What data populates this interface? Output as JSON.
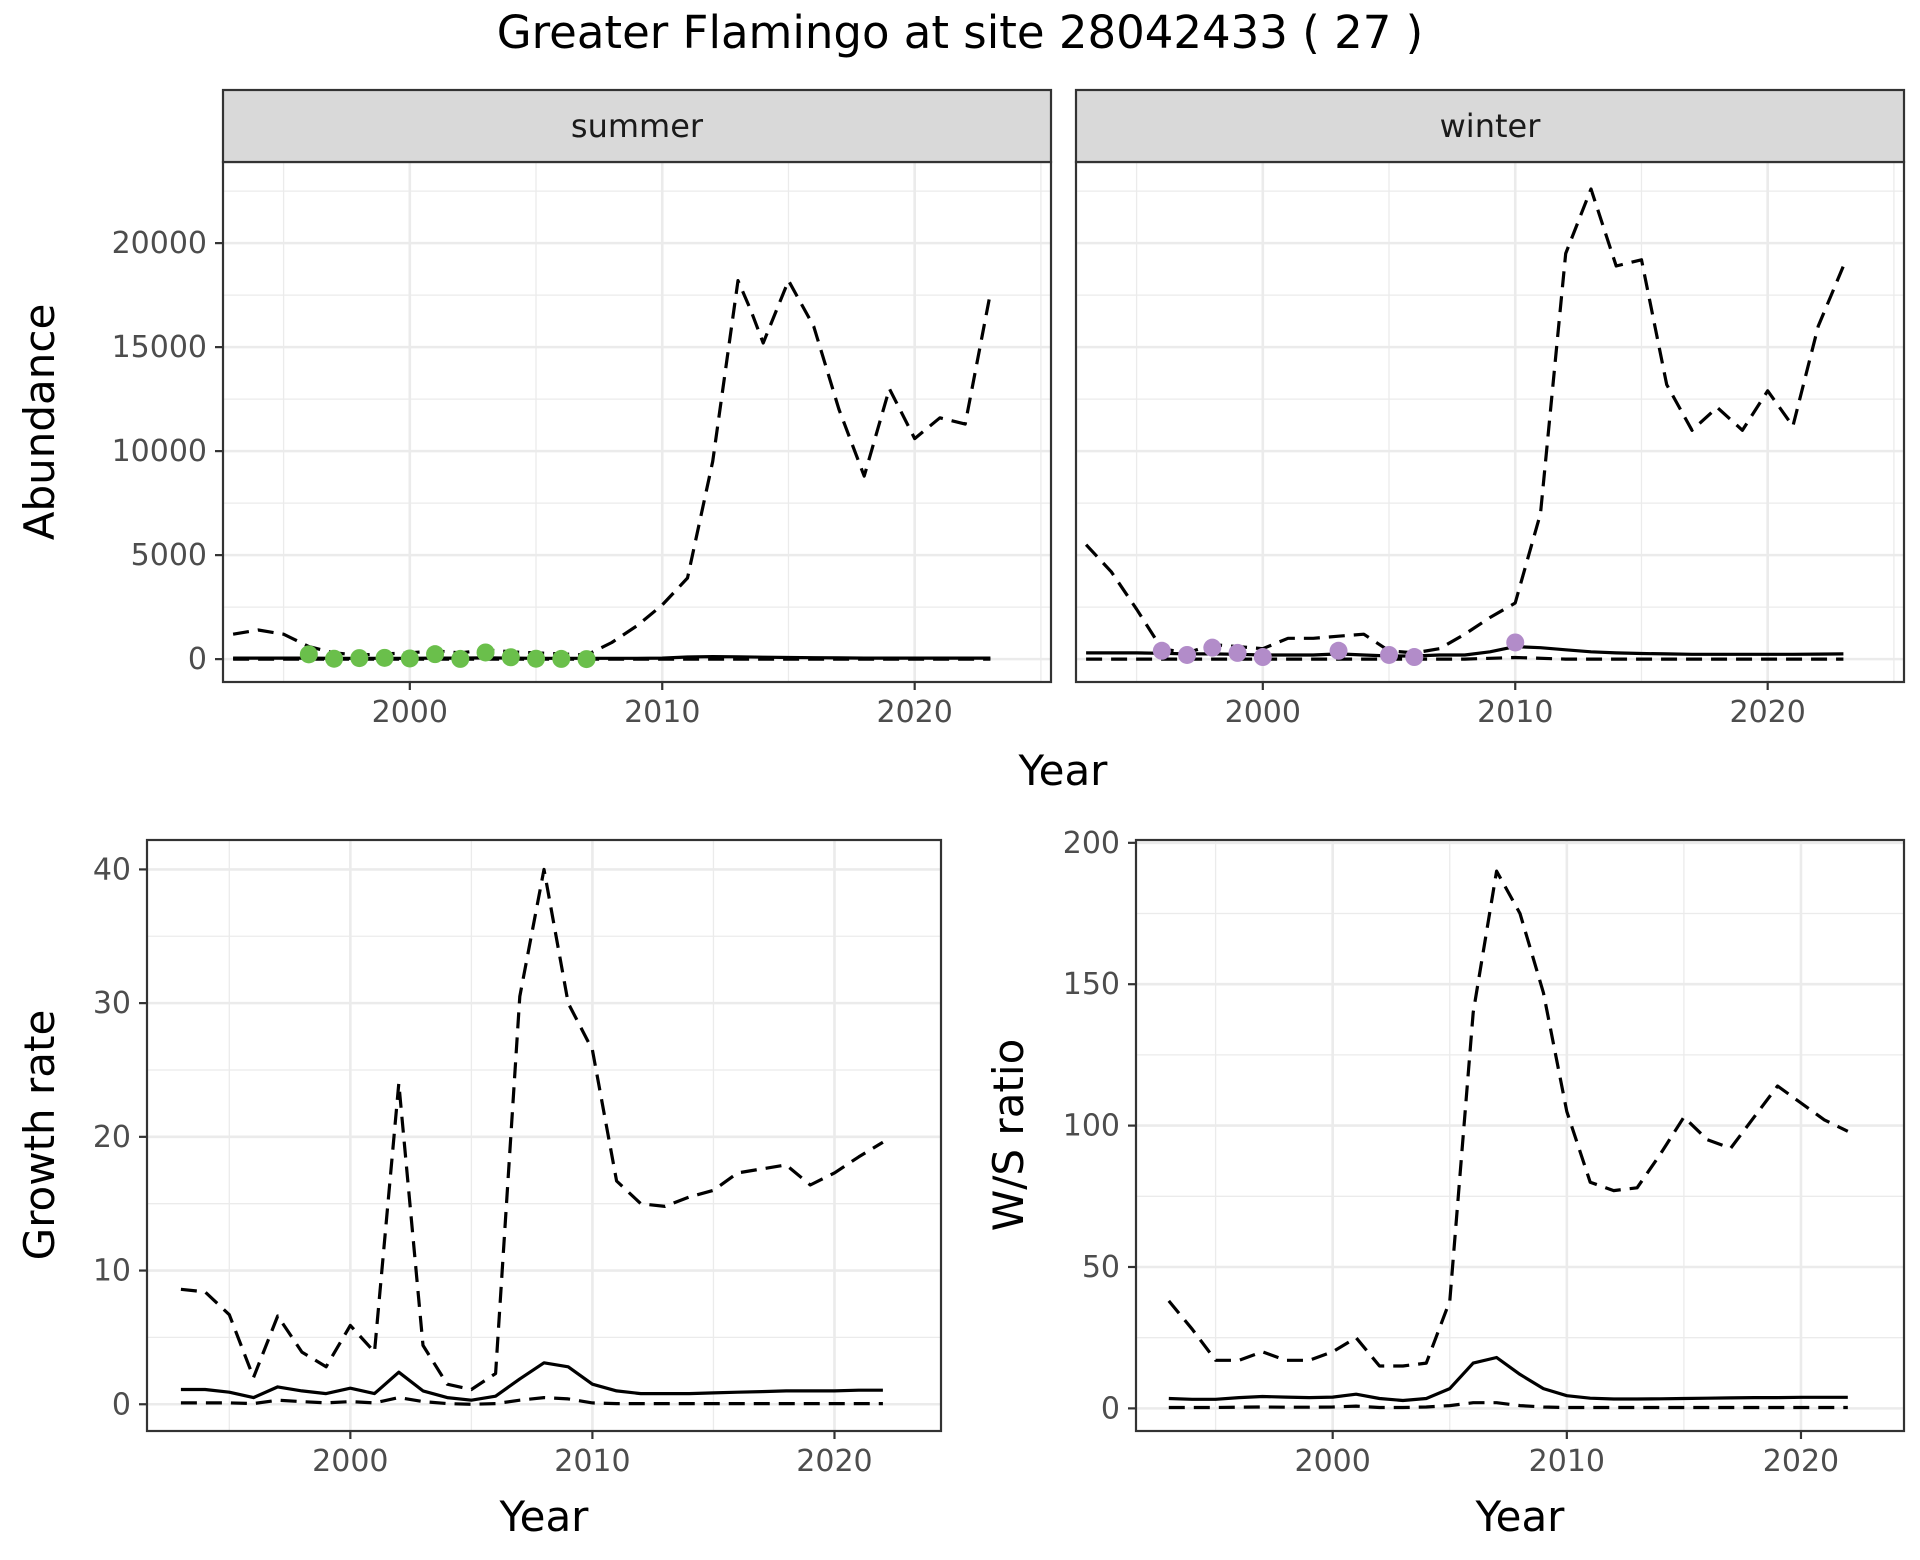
{
  "title": "Greater Flamingo at site 28042433 ( 27 )",
  "colors": {
    "summer_points": "#6abf4b",
    "winter_points": "#b28cc9",
    "lines": "#000000"
  },
  "chart_data": [
    {
      "type": "line",
      "facet": "summer",
      "xlabel": "Year",
      "ylabel": "Abundance",
      "xlim": [
        1992.6,
        2025.4
      ],
      "ylim": [
        -1100,
        23900
      ],
      "xticks": [
        2000,
        2010,
        2020
      ],
      "yticks": [
        0,
        5000,
        10000,
        15000,
        20000
      ],
      "series": [
        {
          "style": "solid",
          "x": [
            1993,
            1995,
            1996,
            1997,
            1998,
            1999,
            2000,
            2001,
            2002,
            2003,
            2004,
            2005,
            2006,
            2007,
            2008,
            2009,
            2010,
            2011,
            2012,
            2013,
            2014,
            2015,
            2016,
            2017,
            2018,
            2019,
            2020,
            2021,
            2022,
            2023
          ],
          "y": [
            50,
            50,
            50,
            40,
            40,
            40,
            40,
            50,
            50,
            60,
            50,
            40,
            40,
            40,
            40,
            40,
            50,
            100,
            120,
            110,
            90,
            80,
            70,
            60,
            50,
            50,
            50,
            50,
            50,
            50
          ]
        },
        {
          "style": "dashed",
          "x": [
            1993,
            1994,
            1995,
            1996,
            1997,
            1998,
            1999,
            2000,
            2001,
            2002,
            2003,
            2004,
            2005,
            2006,
            2007,
            2008,
            2009,
            2010,
            2011,
            2012,
            2013,
            2013.5,
            2014,
            2015,
            2016,
            2017,
            2018,
            2019,
            2020,
            2021,
            2022,
            2023
          ],
          "y": [
            1200,
            1400,
            1200,
            600,
            300,
            200,
            250,
            300,
            400,
            300,
            450,
            350,
            300,
            250,
            200,
            800,
            1600,
            2600,
            3900,
            9500,
            18200,
            16800,
            15200,
            18200,
            16000,
            12000,
            8800,
            13000,
            10600,
            11600,
            11300,
            17600
          ]
        },
        {
          "style": "dashed",
          "x": [
            1993,
            2005,
            2010,
            2023
          ],
          "y": [
            0,
            0,
            0,
            0
          ]
        }
      ],
      "points": {
        "x": [
          1996,
          1997,
          1998,
          1999,
          2000,
          2001,
          2002,
          2003,
          2004,
          2005,
          2006,
          2007
        ],
        "y": [
          230,
          20,
          50,
          60,
          30,
          240,
          10,
          320,
          90,
          20,
          10,
          0
        ]
      }
    },
    {
      "type": "line",
      "facet": "winter",
      "xlabel": "Year",
      "ylabel": "",
      "xlim": [
        1992.6,
        2025.4
      ],
      "ylim": [
        -1100,
        23900
      ],
      "xticks": [
        2000,
        2010,
        2020
      ],
      "yticks": [
        0,
        5000,
        10000,
        15000,
        20000
      ],
      "series": [
        {
          "style": "solid",
          "x": [
            1993,
            1995,
            1996,
            1997,
            1998,
            1999,
            2000,
            2001,
            2002,
            2003,
            2004,
            2005,
            2006,
            2007,
            2008,
            2009,
            2010,
            2011,
            2012,
            2013,
            2014,
            2015,
            2016,
            2017,
            2018,
            2019,
            2020,
            2021,
            2022,
            2023
          ],
          "y": [
            300,
            300,
            280,
            250,
            250,
            230,
            200,
            200,
            200,
            250,
            200,
            150,
            150,
            200,
            200,
            350,
            600,
            550,
            450,
            350,
            300,
            270,
            250,
            230,
            230,
            230,
            230,
            230,
            240,
            250
          ]
        },
        {
          "style": "dashed",
          "x": [
            1993,
            1994,
            1995,
            1996,
            1997,
            1998,
            1999,
            2000,
            2001,
            2002,
            2003,
            2004,
            2005,
            2006,
            2007,
            2008,
            2009,
            2010,
            2011,
            2012,
            2013,
            2014,
            2015,
            2016,
            2017,
            2018,
            2019,
            2020,
            2021,
            2022,
            2023
          ],
          "y": [
            5500,
            4200,
            2400,
            500,
            300,
            700,
            600,
            500,
            1000,
            1000,
            1100,
            1200,
            400,
            300,
            500,
            1200,
            2000,
            2700,
            7000,
            19500,
            22600,
            18900,
            19200,
            13200,
            11000,
            12100,
            11000,
            12900,
            11200,
            16000,
            18900
          ]
        },
        {
          "style": "dashed",
          "x": [
            1993,
            2008,
            2010,
            2012,
            2023
          ],
          "y": [
            0,
            0,
            80,
            0,
            0
          ]
        }
      ],
      "points": {
        "x": [
          1996,
          1997,
          1998,
          1999,
          2000,
          2003,
          2005,
          2006,
          2010
        ],
        "y": [
          400,
          200,
          550,
          300,
          100,
          400,
          200,
          100,
          800
        ]
      }
    },
    {
      "type": "line",
      "xlabel": "Year",
      "ylabel": "Growth rate",
      "xlim": [
        1991.6,
        2024.4
      ],
      "ylim": [
        -2,
        42.2
      ],
      "xticks": [
        2000,
        2010,
        2020
      ],
      "yticks": [
        0,
        10,
        20,
        30,
        40
      ],
      "series": [
        {
          "style": "solid",
          "x": [
            1993,
            1994,
            1995,
            1996,
            1997,
            1998,
            1999,
            2000,
            2001,
            2002,
            2003,
            2004,
            2005,
            2006,
            2007,
            2008,
            2009,
            2010,
            2011,
            2012,
            2013,
            2014,
            2015,
            2016,
            2017,
            2018,
            2019,
            2020,
            2021,
            2022
          ],
          "y": [
            1.1,
            1.1,
            0.9,
            0.5,
            1.3,
            1.0,
            0.8,
            1.2,
            0.8,
            2.4,
            1.0,
            0.5,
            0.3,
            0.6,
            1.9,
            3.1,
            2.8,
            1.5,
            1.0,
            0.8,
            0.8,
            0.8,
            0.85,
            0.9,
            0.95,
            1.0,
            1.0,
            1.0,
            1.05,
            1.05
          ]
        },
        {
          "style": "dashed",
          "x": [
            1993,
            1994,
            1995,
            1996,
            1997,
            1998,
            1999,
            2000,
            2001,
            2002,
            2003,
            2004,
            2005,
            2006,
            2007,
            2008,
            2009,
            2010,
            2011,
            2012,
            2013,
            2014,
            2015,
            2016,
            2017,
            2018,
            2019,
            2020,
            2021,
            2022
          ],
          "y": [
            8.6,
            8.4,
            6.7,
            2.0,
            6.6,
            3.9,
            2.8,
            5.9,
            3.9,
            24.0,
            4.4,
            1.5,
            1.1,
            2.3,
            30.5,
            40.0,
            30.0,
            26.5,
            16.7,
            15.0,
            14.8,
            15.5,
            16.0,
            17.3,
            17.6,
            17.9,
            16.4,
            17.3,
            18.5,
            19.6
          ]
        },
        {
          "style": "dashed",
          "x": [
            1993,
            1994,
            1995,
            1996,
            1997,
            1998,
            1999,
            2000,
            2001,
            2002,
            2003,
            2004,
            2005,
            2006,
            2007,
            2008,
            2009,
            2010,
            2011,
            2012,
            2013,
            2014,
            2015,
            2016,
            2017,
            2018,
            2019,
            2020,
            2021,
            2022
          ],
          "y": [
            0.1,
            0.1,
            0.1,
            0.05,
            0.3,
            0.2,
            0.1,
            0.2,
            0.1,
            0.5,
            0.2,
            0.05,
            0.0,
            0.05,
            0.3,
            0.5,
            0.4,
            0.1,
            0.05,
            0.05,
            0.05,
            0.05,
            0.05,
            0.05,
            0.05,
            0.05,
            0.05,
            0.05,
            0.05,
            0.05
          ]
        }
      ]
    },
    {
      "type": "line",
      "xlabel": "Year",
      "ylabel": "W/S ratio",
      "xlim": [
        1991.6,
        2024.4
      ],
      "ylim": [
        -8,
        201
      ],
      "xticks": [
        2000,
        2010,
        2020
      ],
      "yticks": [
        0,
        50,
        100,
        150,
        200
      ],
      "series": [
        {
          "style": "solid",
          "x": [
            1993,
            1994,
            1995,
            1996,
            1997,
            1998,
            1999,
            2000,
            2001,
            2002,
            2003,
            2004,
            2005,
            2006,
            2007,
            2008,
            2009,
            2010,
            2011,
            2012,
            2013,
            2014,
            2015,
            2016,
            2017,
            2018,
            2019,
            2020,
            2021,
            2022
          ],
          "y": [
            3.5,
            3.2,
            3.2,
            3.8,
            4.2,
            4.0,
            3.8,
            4.0,
            5.0,
            3.5,
            2.8,
            3.5,
            7.0,
            16.0,
            18.0,
            12.0,
            7.0,
            4.5,
            3.6,
            3.3,
            3.3,
            3.4,
            3.5,
            3.6,
            3.7,
            3.8,
            3.8,
            3.9,
            3.9,
            3.9
          ]
        },
        {
          "style": "dashed",
          "x": [
            1993,
            1994,
            1995,
            1996,
            1997,
            1998,
            1999,
            2000,
            2001,
            2002,
            2003,
            2004,
            2005,
            2006,
            2007,
            2008,
            2009,
            2010,
            2011,
            2012,
            2013,
            2014,
            2015,
            2016,
            2017,
            2018,
            2019,
            2020,
            2021,
            2022
          ],
          "y": [
            38,
            28,
            17,
            17,
            20,
            17,
            17,
            20,
            25,
            15,
            15,
            16,
            38,
            140,
            190,
            175,
            147,
            105,
            80,
            77,
            78,
            90,
            103,
            95,
            92,
            103,
            114,
            108,
            102,
            98
          ]
        },
        {
          "style": "dashed",
          "x": [
            1993,
            1994,
            1995,
            1996,
            1997,
            1998,
            1999,
            2000,
            2001,
            2002,
            2003,
            2004,
            2005,
            2006,
            2007,
            2008,
            2009,
            2010,
            2011,
            2012,
            2013,
            2014,
            2015,
            2016,
            2017,
            2018,
            2019,
            2020,
            2021,
            2022
          ],
          "y": [
            0.3,
            0.3,
            0.3,
            0.4,
            0.5,
            0.4,
            0.4,
            0.5,
            0.8,
            0.3,
            0.3,
            0.5,
            1.0,
            2.0,
            2.0,
            1.0,
            0.5,
            0.3,
            0.3,
            0.3,
            0.3,
            0.3,
            0.3,
            0.3,
            0.3,
            0.3,
            0.3,
            0.3,
            0.3,
            0.3
          ]
        }
      ]
    }
  ]
}
